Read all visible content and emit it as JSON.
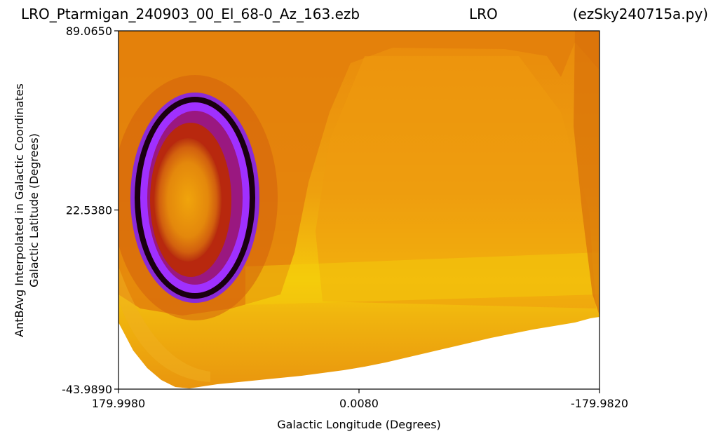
{
  "title": {
    "left": "LRO_Ptarmigan_240903_00_El_68-0_Az_163.ezb",
    "center": "LRO",
    "right": "(ezSky240715a.py)"
  },
  "chart_data": {
    "type": "heatmap",
    "xlabel": "Galactic Longitude (Degrees)",
    "ylabel_line1": "AntBAvg Interpolated in Galactic Coordinates",
    "ylabel_line2": "Galactic Latitude (Degrees)",
    "xlim": [
      179.998,
      -179.982
    ],
    "ylim": [
      -43.989,
      89.065
    ],
    "x_ticks": [
      {
        "value": 179.998,
        "label": "179.9980"
      },
      {
        "value": 0.008,
        "label": "0.0080"
      },
      {
        "value": -179.982,
        "label": "-179.9820"
      }
    ],
    "y_ticks": [
      {
        "value": 89.065,
        "label": "89.0650"
      },
      {
        "value": 22.538,
        "label": "22.5380"
      },
      {
        "value": -43.989,
        "label": "-43.9890"
      }
    ],
    "colormap": "gnuplot",
    "colors": {
      "background": "#e8860c",
      "band": "#f0b010",
      "ring_outer": "#7a1fd6",
      "ring_core": "#1a0010",
      "ring_violet": "#a030ff",
      "ring_inner": "#c84010"
    }
  }
}
